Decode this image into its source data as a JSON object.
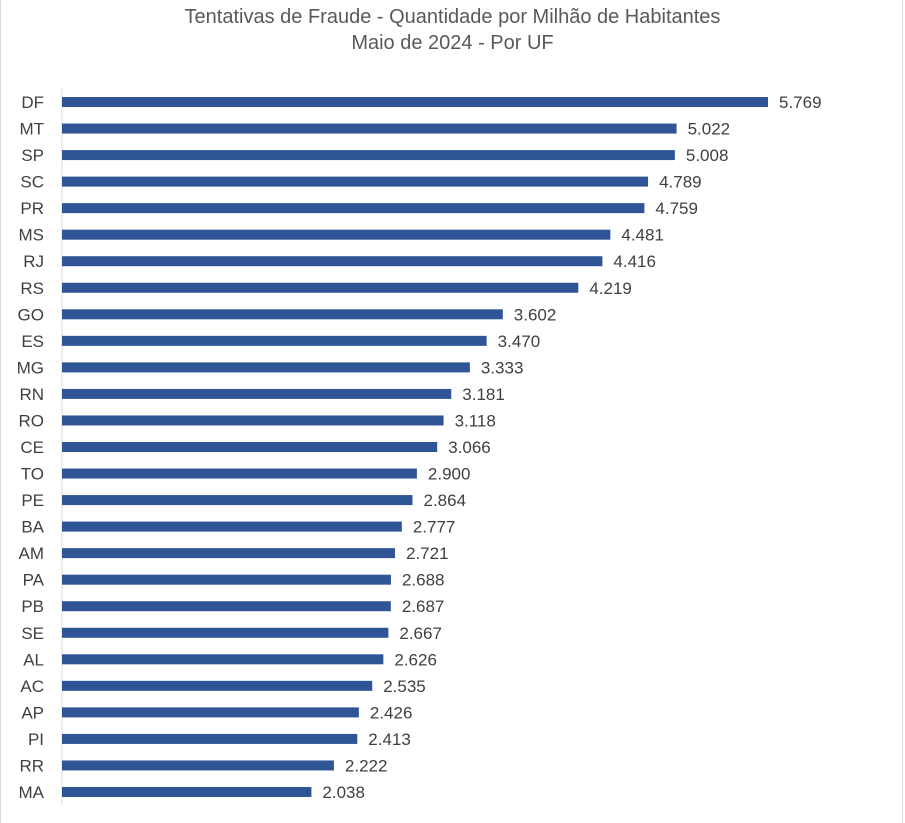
{
  "chart_data": {
    "type": "bar",
    "orientation": "horizontal",
    "title": "Tentativas de Fraude - Quantidade por Milhão de Habitantes",
    "subtitle": "Maio de 2024 - Por UF",
    "xlabel": "",
    "ylabel": "",
    "grid": false,
    "legend": "none",
    "bar_color": "#2f5597",
    "categories": [
      "DF",
      "MT",
      "SP",
      "SC",
      "PR",
      "MS",
      "RJ",
      "RS",
      "GO",
      "ES",
      "MG",
      "RN",
      "RO",
      "CE",
      "TO",
      "PE",
      "BA",
      "AM",
      "PA",
      "PB",
      "SE",
      "AL",
      "AC",
      "AP",
      "PI",
      "RR",
      "MA"
    ],
    "values": [
      5769,
      5022,
      5008,
      4789,
      4759,
      4481,
      4416,
      4219,
      3602,
      3470,
      3333,
      3181,
      3118,
      3066,
      2900,
      2864,
      2777,
      2721,
      2688,
      2687,
      2667,
      2626,
      2535,
      2426,
      2413,
      2222,
      2038
    ],
    "value_labels": [
      "5.769",
      "5.022",
      "5.008",
      "4.789",
      "4.759",
      "4.481",
      "4.416",
      "4.219",
      "3.602",
      "3.470",
      "3.333",
      "3.181",
      "3.118",
      "3.066",
      "2.900",
      "2.864",
      "2.777",
      "2.721",
      "2.688",
      "2.687",
      "2.667",
      "2.626",
      "2.535",
      "2.426",
      "2.413",
      "2.222",
      "2.038"
    ],
    "xlim": [
      0,
      5769
    ]
  }
}
